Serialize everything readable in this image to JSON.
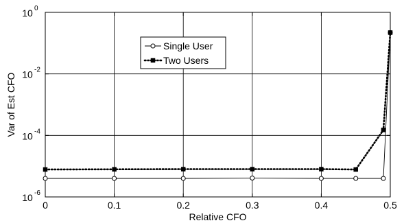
{
  "chart_data": {
    "type": "line",
    "title": "",
    "xlabel": "Relative CFO",
    "ylabel": "Var of Est CFO",
    "xlim": [
      0,
      0.5
    ],
    "ylim": [
      1e-06,
      1
    ],
    "yscale": "log",
    "grid": true,
    "legend_position": "upper-center",
    "xticks": [
      {
        "value": 0,
        "label": "0"
      },
      {
        "value": 0.1,
        "label": "0.1"
      },
      {
        "value": 0.2,
        "label": "0.2"
      },
      {
        "value": 0.3,
        "label": "0.3"
      },
      {
        "value": 0.4,
        "label": "0.4"
      },
      {
        "value": 0.5,
        "label": "0.5"
      }
    ],
    "yticks": [
      {
        "value": 1e-06,
        "base": "10",
        "exponent": "-6"
      },
      {
        "value": 0.0001,
        "base": "10",
        "exponent": "-4"
      },
      {
        "value": 0.01,
        "base": "10",
        "exponent": "-2"
      },
      {
        "value": 1,
        "base": "10",
        "exponent": "0"
      }
    ],
    "series": [
      {
        "name": "Single User",
        "color": "#000000",
        "line_style": "solid",
        "marker": "open-circle",
        "x": [
          0,
          0.1,
          0.2,
          0.3,
          0.4,
          0.45,
          0.49,
          0.5
        ],
        "y": [
          4e-06,
          4e-06,
          4e-06,
          4.1e-06,
          4e-06,
          4e-06,
          4e-06,
          0.22
        ]
      },
      {
        "name": "Two Users",
        "color": "#000000",
        "line_style": "dotted",
        "marker": "filled-square",
        "x": [
          0,
          0.1,
          0.2,
          0.3,
          0.4,
          0.45,
          0.49,
          0.5
        ],
        "y": [
          7.8e-06,
          7.9e-06,
          8e-06,
          8e-06,
          8e-06,
          7.8e-06,
          0.00015,
          0.22
        ]
      }
    ]
  }
}
